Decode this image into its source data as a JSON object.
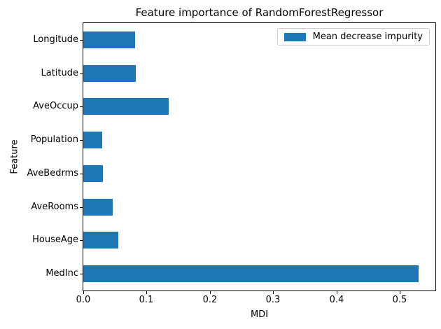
{
  "chart_data": {
    "type": "bar",
    "orientation": "horizontal",
    "title": "Feature importance of RandomForestRegressor",
    "xlabel": "MDI",
    "ylabel": "Feature",
    "categories_top_to_bottom": [
      "Longitude",
      "Latitude",
      "AveOccup",
      "Population",
      "AveBedrms",
      "AveRooms",
      "HouseAge",
      "MedInc"
    ],
    "series": [
      {
        "name": "Mean decrease impurity",
        "values": [
          0.082,
          0.083,
          0.135,
          0.03,
          0.031,
          0.047,
          0.055,
          0.53
        ]
      }
    ],
    "xlim": [
      0,
      0.5565
    ],
    "xticks": [
      0.0,
      0.1,
      0.2,
      0.3,
      0.4,
      0.5
    ],
    "xtick_labels": [
      "0.0",
      "0.1",
      "0.2",
      "0.3",
      "0.4",
      "0.5"
    ],
    "bar_color": "#1f77b4",
    "bar_rel_height": 0.5,
    "grid": false,
    "legend": {
      "label": "Mean decrease impurity",
      "position": "upper right"
    }
  }
}
